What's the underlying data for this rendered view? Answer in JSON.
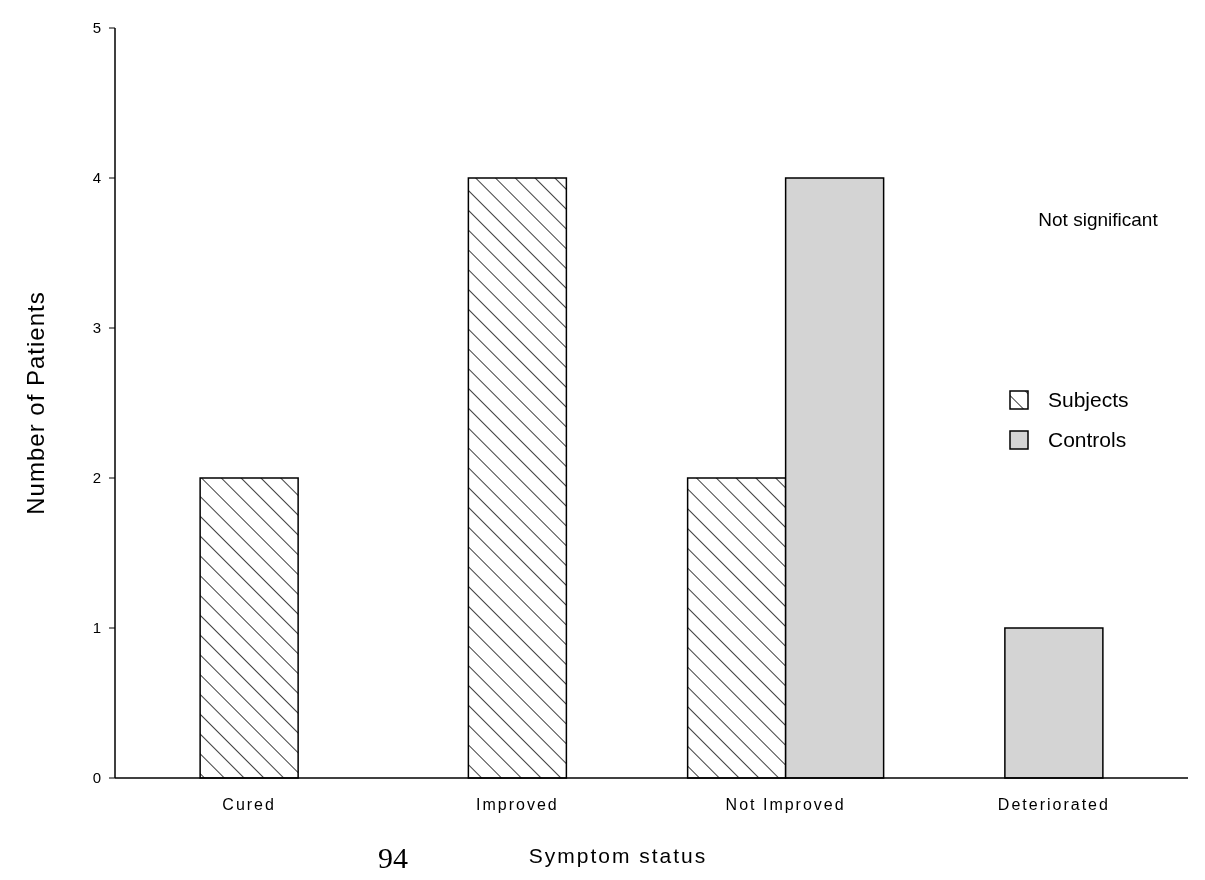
{
  "chart_data": {
    "type": "bar",
    "xlabel": "Symptom status",
    "ylabel": "Number of Patients",
    "categories": [
      "Cured",
      "Improved",
      "Not Improved",
      "Deteriorated"
    ],
    "series": [
      {
        "name": "Subjects",
        "color": "#000000",
        "values": [
          2,
          4,
          2,
          null
        ]
      },
      {
        "name": "Controls",
        "color": "#d4d4d4",
        "values": [
          null,
          null,
          4,
          1
        ]
      }
    ],
    "ylim": [
      0,
      5
    ],
    "yticks": [
      0,
      1,
      2,
      3,
      4,
      5
    ],
    "grid": false,
    "legend": "right",
    "annotations": [
      "Not significant",
      "94"
    ]
  }
}
